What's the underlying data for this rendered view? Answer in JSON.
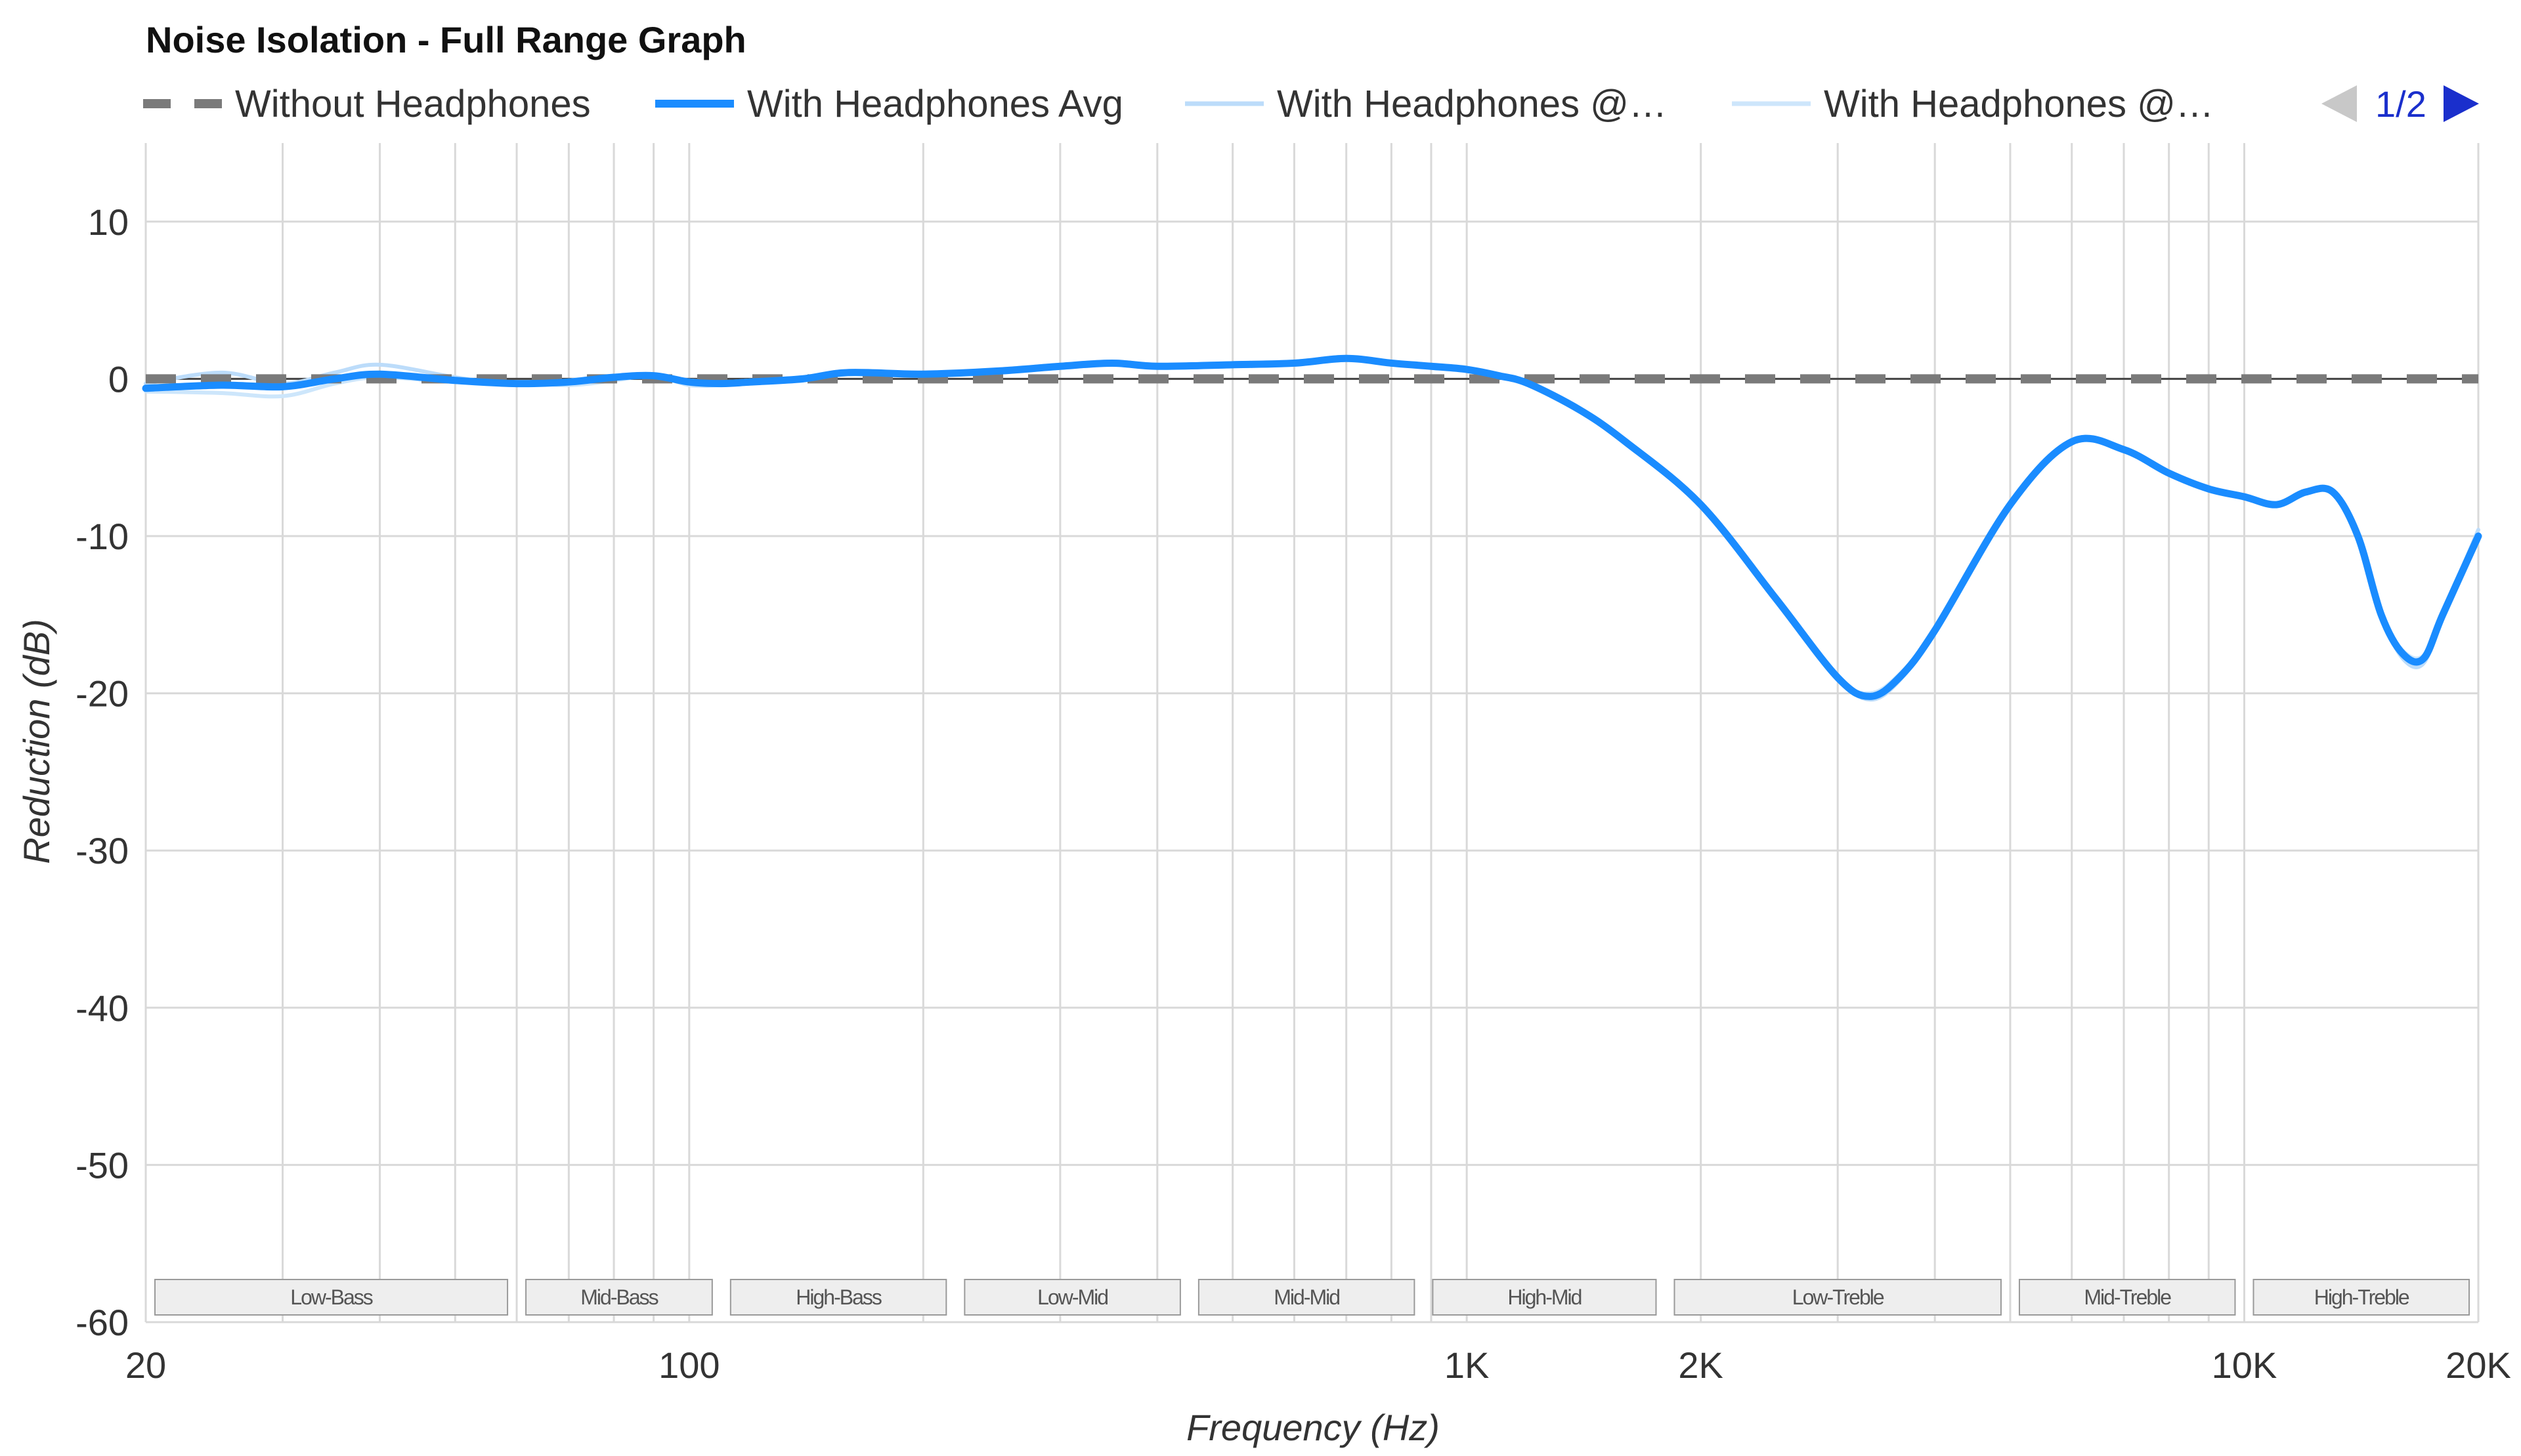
{
  "chart_data": {
    "type": "line",
    "title": "Noise Isolation - Full Range Graph",
    "xlabel": "Frequency (Hz)",
    "ylabel": "Reduction (dB)",
    "x_scale": "log",
    "xlim": [
      20,
      20000
    ],
    "ylim": [
      -60,
      15
    ],
    "x_ticks": [
      {
        "value": 20,
        "label": "20"
      },
      {
        "value": 100,
        "label": "100"
      },
      {
        "value": 1000,
        "label": "1K"
      },
      {
        "value": 2000,
        "label": "2K"
      },
      {
        "value": 10000,
        "label": "10K"
      },
      {
        "value": 20000,
        "label": "20K"
      }
    ],
    "y_ticks": [
      10,
      0,
      -10,
      -20,
      -30,
      -40,
      -50,
      -60
    ],
    "grid": true,
    "legend_position": "top",
    "legend_page": "1/2",
    "bands": [
      {
        "label": "Low-Bass",
        "from": 20,
        "to": 60
      },
      {
        "label": "Mid-Bass",
        "from": 60,
        "to": 110
      },
      {
        "label": "High-Bass",
        "from": 110,
        "to": 220
      },
      {
        "label": "Low-Mid",
        "from": 220,
        "to": 440
      },
      {
        "label": "Mid-Mid",
        "from": 440,
        "to": 880
      },
      {
        "label": "High-Mid",
        "from": 880,
        "to": 1800
      },
      {
        "label": "Low-Treble",
        "from": 1800,
        "to": 5000
      },
      {
        "label": "Mid-Treble",
        "from": 5000,
        "to": 10000
      },
      {
        "label": "High-Treble",
        "from": 10000,
        "to": 20000
      }
    ],
    "series": [
      {
        "name": "Without Headphones",
        "color": "#7a7a7a",
        "style": "dashed",
        "x": [
          20,
          20000
        ],
        "y": [
          0,
          0
        ]
      },
      {
        "name": "With Headphones Avg",
        "color": "#1a8cff",
        "style": "solid",
        "x": [
          20,
          25,
          30,
          35,
          40,
          50,
          60,
          70,
          80,
          90,
          100,
          110,
          120,
          140,
          160,
          200,
          250,
          300,
          350,
          400,
          500,
          600,
          700,
          800,
          900,
          1000,
          1100,
          1200,
          1400,
          1600,
          2000,
          2500,
          3000,
          3300,
          3600,
          4000,
          5000,
          6000,
          7000,
          8000,
          9000,
          10000,
          11000,
          12000,
          13000,
          14000,
          15000,
          16000,
          17000,
          18000,
          20000
        ],
        "y": [
          -0.6,
          -0.4,
          -0.5,
          0,
          0.3,
          -0.1,
          -0.3,
          -0.2,
          0.1,
          0.2,
          -0.2,
          -0.3,
          -0.2,
          0,
          0.4,
          0.3,
          0.5,
          0.8,
          1.0,
          0.8,
          0.9,
          1.0,
          1.3,
          1.0,
          0.8,
          0.6,
          0.2,
          -0.3,
          -2,
          -4,
          -8,
          -14,
          -19,
          -20.2,
          -19,
          -16,
          -8,
          -4,
          -4.5,
          -6,
          -7,
          -7.5,
          -8,
          -7.2,
          -7.2,
          -10,
          -15,
          -17.5,
          -17.8,
          -15,
          -10
        ]
      },
      {
        "name": "With Headphones @…",
        "color": "#bcdcfa",
        "style": "solid",
        "x": [
          20,
          25,
          30,
          35,
          40,
          50,
          60,
          70,
          80,
          90,
          100,
          110,
          120,
          140,
          160,
          200,
          250,
          300,
          350,
          400,
          500,
          600,
          700,
          800,
          900,
          1000,
          1100,
          1200,
          1400,
          1600,
          2000,
          2500,
          3000,
          3300,
          3600,
          4000,
          5000,
          6000,
          7000,
          8000,
          9000,
          10000,
          11000,
          12000,
          13000,
          14000,
          15000,
          16000,
          17000,
          18000,
          20000
        ],
        "y": [
          -0.3,
          0.4,
          -0.3,
          0.4,
          0.9,
          0.1,
          -0.4,
          -0.1,
          0.2,
          0.1,
          -0.1,
          -0.2,
          -0.1,
          0.1,
          0.5,
          0.3,
          0.6,
          0.9,
          1.1,
          0.9,
          1.0,
          1.1,
          1.4,
          1.0,
          0.8,
          0.6,
          0.2,
          -0.3,
          -2,
          -4,
          -8,
          -14,
          -19,
          -20.4,
          -19.2,
          -16,
          -8,
          -4,
          -4.5,
          -6,
          -7,
          -7.5,
          -8,
          -7.2,
          -7.2,
          -10,
          -15,
          -17.8,
          -18.1,
          -15,
          -9.6
        ]
      },
      {
        "name": "With Headphones @…",
        "color": "#cde6fb",
        "style": "solid",
        "x": [
          20,
          25,
          30,
          35,
          40,
          50,
          60,
          70,
          80,
          90,
          100,
          110,
          120,
          140,
          160,
          200,
          250,
          300,
          350,
          400,
          500,
          600,
          700,
          800,
          900,
          1000,
          1100,
          1200,
          1400,
          1600,
          2000,
          2500,
          3000,
          3300,
          3600,
          4000,
          5000,
          6000,
          7000,
          8000,
          9000,
          10000,
          11000,
          12000,
          13000,
          14000,
          15000,
          16000,
          17000,
          18000,
          20000
        ],
        "y": [
          -0.8,
          -0.9,
          -1.1,
          -0.3,
          0.1,
          -0.2,
          -0.2,
          -0.4,
          -0.1,
          0.2,
          -0.4,
          -0.4,
          -0.3,
          -0.1,
          0.3,
          0.2,
          0.4,
          0.7,
          0.9,
          0.7,
          0.8,
          0.9,
          1.2,
          1.0,
          0.8,
          0.6,
          0.2,
          -0.3,
          -2,
          -4,
          -8,
          -14,
          -19,
          -20.0,
          -18.8,
          -16,
          -8,
          -4,
          -4.5,
          -6,
          -7,
          -7.5,
          -8,
          -7.2,
          -7.2,
          -10,
          -15,
          -17.3,
          -17.6,
          -15,
          -10.3
        ]
      }
    ]
  }
}
